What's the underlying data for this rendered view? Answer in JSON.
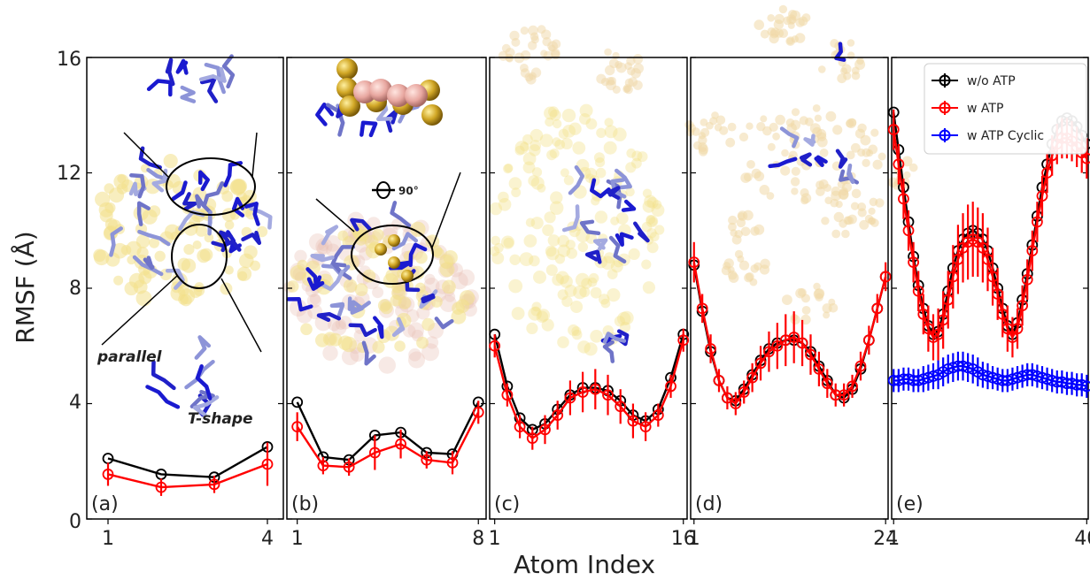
{
  "chart_data": {
    "type": "line",
    "ylabel": "RMSF (Å)",
    "xlabel": "Atom Index",
    "ylim": [
      0,
      16
    ],
    "yticks": [
      0,
      4,
      8,
      12,
      16
    ],
    "legend": {
      "placement": "top-right of panel (e)",
      "entries": [
        "w/o ATP",
        "w ATP",
        "w ATP Cyclic"
      ],
      "colors": [
        "#000000",
        "#ff0000",
        "#0000ff"
      ]
    },
    "annotations": [
      "parallel",
      "T-shape",
      "90°"
    ],
    "panels": [
      {
        "label": "(a)",
        "xlim": [
          0.6,
          4.3
        ],
        "xticks": [
          1,
          4
        ],
        "x": [
          1,
          2,
          3,
          4
        ],
        "series": [
          {
            "name": "w/o ATP",
            "color": "#000000",
            "y": [
              2.1,
              1.55,
              1.45,
              2.5
            ],
            "err": []
          },
          {
            "name": "w ATP",
            "color": "#ff0000",
            "y": [
              1.55,
              1.1,
              1.2,
              1.9
            ],
            "err": [
              0.4,
              0.3,
              0.3,
              0.75
            ]
          }
        ]
      },
      {
        "label": "(b)",
        "xlim": [
          0.6,
          8.3
        ],
        "xticks": [
          1,
          8
        ],
        "x": [
          1,
          2,
          3,
          4,
          5,
          6,
          7,
          8
        ],
        "series": [
          {
            "name": "w/o ATP",
            "color": "#000000",
            "y": [
              4.05,
              2.15,
              2.05,
              2.9,
              3.0,
              2.3,
              2.25,
              4.05
            ],
            "err": []
          },
          {
            "name": "w ATP",
            "color": "#ff0000",
            "y": [
              3.2,
              1.85,
              1.8,
              2.3,
              2.6,
              2.05,
              1.95,
              3.7
            ],
            "err": [
              0.5,
              0.3,
              0.3,
              0.6,
              0.5,
              0.3,
              0.4,
              0.4
            ]
          }
        ]
      },
      {
        "label": "(c)",
        "xlim": [
          0.6,
          16.3
        ],
        "xticks": [
          1,
          16
        ],
        "x": [
          1,
          2,
          3,
          4,
          5,
          6,
          7,
          8,
          9,
          10,
          11,
          12,
          13,
          14,
          15,
          16
        ],
        "series": [
          {
            "name": "w/o ATP",
            "color": "#000000",
            "y": [
              6.4,
              4.6,
              3.5,
              3.1,
              3.3,
              3.8,
              4.3,
              4.55,
              4.55,
              4.45,
              4.1,
              3.6,
              3.4,
              3.8,
              4.9,
              6.4
            ],
            "err": []
          },
          {
            "name": "w ATP",
            "color": "#ff0000",
            "y": [
              6.0,
              4.3,
              3.2,
              2.8,
              3.1,
              3.6,
              4.2,
              4.4,
              4.5,
              4.3,
              3.9,
              3.4,
              3.2,
              3.6,
              4.6,
              6.2
            ],
            "err": [
              0.4,
              0.4,
              0.4,
              0.4,
              0.5,
              0.5,
              0.6,
              0.7,
              0.7,
              0.7,
              0.6,
              0.6,
              0.5,
              0.4,
              0.4,
              0.4
            ]
          }
        ]
      },
      {
        "label": "(d)",
        "xlim": [
          0.6,
          24.3
        ],
        "xticks": [
          1,
          24
        ],
        "x": [
          1,
          2,
          3,
          4,
          5,
          6,
          7,
          8,
          9,
          10,
          11,
          12,
          13,
          14,
          15,
          16,
          17,
          18,
          19,
          20,
          21,
          22,
          23,
          24
        ],
        "series": [
          {
            "name": "w/o ATP",
            "color": "#000000",
            "y": [
              8.8,
              7.2,
              5.8,
              4.8,
              4.2,
              4.1,
              4.5,
              5.0,
              5.5,
              5.9,
              6.1,
              6.2,
              6.2,
              6.1,
              5.8,
              5.3,
              4.8,
              4.3,
              4.2,
              4.5,
              5.2,
              6.2,
              7.3,
              8.4
            ],
            "err": []
          },
          {
            "name": "w ATP",
            "color": "#ff0000",
            "y": [
              8.9,
              7.3,
              5.9,
              4.8,
              4.2,
              4.0,
              4.4,
              4.9,
              5.4,
              5.8,
              6.0,
              6.2,
              6.3,
              6.1,
              5.7,
              5.2,
              4.7,
              4.3,
              4.3,
              4.6,
              5.3,
              6.2,
              7.3,
              8.4
            ],
            "err": [
              0.7,
              0.5,
              0.5,
              0.4,
              0.4,
              0.4,
              0.4,
              0.5,
              0.6,
              0.7,
              0.8,
              0.9,
              0.9,
              0.8,
              0.7,
              0.6,
              0.5,
              0.4,
              0.4,
              0.4,
              0.5,
              0.5,
              0.5,
              0.5
            ]
          }
        ]
      },
      {
        "label": "(e)",
        "xlim": [
          0.6,
          40.3
        ],
        "xticks": [
          1,
          40
        ],
        "x": [
          1,
          2,
          3,
          4,
          5,
          6,
          7,
          8,
          9,
          10,
          11,
          12,
          13,
          14,
          15,
          16,
          17,
          18,
          19,
          20,
          21,
          22,
          23,
          24,
          25,
          26,
          27,
          28,
          29,
          30,
          31,
          32,
          33,
          34,
          35,
          36,
          37,
          38,
          39,
          40
        ],
        "series": [
          {
            "name": "w/o ATP",
            "color": "#000000",
            "y": [
              14.1,
              12.8,
              11.5,
              10.3,
              9.1,
              8.1,
              7.3,
              6.7,
              6.4,
              6.5,
              7.1,
              7.9,
              8.7,
              9.3,
              9.7,
              9.9,
              10.0,
              9.9,
              9.7,
              9.3,
              8.7,
              8.0,
              7.3,
              6.7,
              6.4,
              6.8,
              7.6,
              8.5,
              9.5,
              10.5,
              11.5,
              12.3,
              13.0,
              13.5,
              13.8,
              13.9,
              13.8,
              13.6,
              13.3,
              13.0
            ],
            "err": []
          },
          {
            "name": "w ATP",
            "color": "#ff0000",
            "y": [
              13.5,
              12.3,
              11.1,
              10.0,
              8.9,
              7.9,
              7.1,
              6.6,
              6.3,
              6.4,
              6.9,
              7.6,
              8.4,
              9.0,
              9.4,
              9.6,
              9.7,
              9.6,
              9.4,
              9.0,
              8.4,
              7.8,
              7.1,
              6.6,
              6.3,
              6.6,
              7.4,
              8.3,
              9.3,
              10.3,
              11.2,
              12.0,
              12.6,
              13.0,
              13.2,
              13.2,
              13.1,
              12.9,
              12.7,
              12.5
            ],
            "err": [
              0.7,
              0.7,
              0.7,
              0.7,
              0.7,
              0.7,
              0.7,
              0.8,
              0.8,
              0.9,
              1.0,
              1.0,
              1.1,
              1.2,
              1.2,
              1.3,
              1.3,
              1.2,
              1.2,
              1.1,
              1.0,
              0.9,
              0.8,
              0.8,
              0.7,
              0.7,
              0.7,
              0.7,
              0.7,
              0.7,
              0.7,
              0.7,
              0.7,
              0.7,
              0.7,
              0.7,
              0.7,
              0.7,
              0.7,
              0.7
            ]
          },
          {
            "name": "w ATP Cyclic",
            "color": "#0000ff",
            "y": [
              4.8,
              4.8,
              4.85,
              4.85,
              4.8,
              4.8,
              4.85,
              4.9,
              4.95,
              5.0,
              5.1,
              5.2,
              5.25,
              5.3,
              5.3,
              5.25,
              5.2,
              5.1,
              5.0,
              4.95,
              4.9,
              4.85,
              4.8,
              4.8,
              4.85,
              4.9,
              4.95,
              5.0,
              5.0,
              4.95,
              4.9,
              4.85,
              4.8,
              4.75,
              4.75,
              4.7,
              4.7,
              4.65,
              4.65,
              4.6
            ],
            "err": [
              0.4,
              0.4,
              0.4,
              0.4,
              0.4,
              0.4,
              0.45,
              0.45,
              0.45,
              0.5,
              0.5,
              0.5,
              0.5,
              0.5,
              0.5,
              0.5,
              0.5,
              0.5,
              0.45,
              0.45,
              0.4,
              0.4,
              0.4,
              0.4,
              0.4,
              0.4,
              0.4,
              0.4,
              0.4,
              0.4,
              0.4,
              0.4,
              0.4,
              0.4,
              0.4,
              0.4,
              0.4,
              0.4,
              0.4,
              0.4
            ]
          }
        ]
      }
    ]
  }
}
